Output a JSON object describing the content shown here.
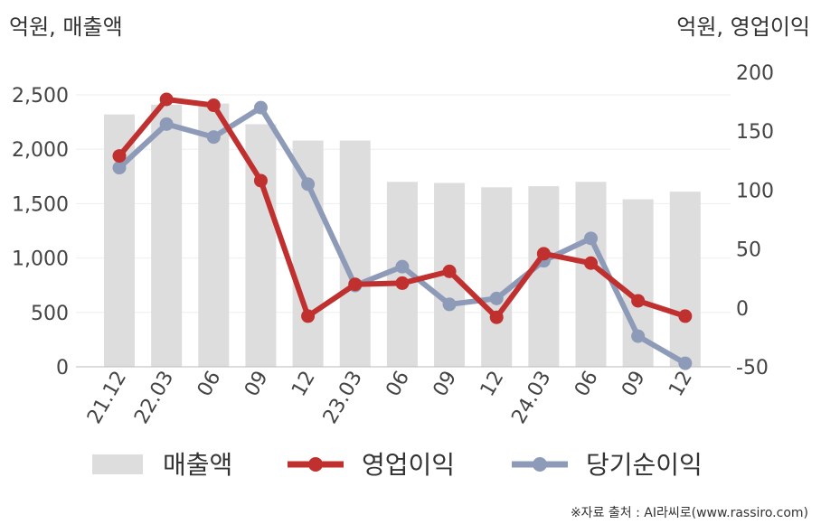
{
  "chart_data": {
    "type": "bar+line",
    "left_unit_label": "억원, 매출액",
    "right_unit_label": "억원, 영업이익",
    "categories": [
      "21.12",
      "22.03",
      "06",
      "09",
      "12",
      "23.03",
      "06",
      "09",
      "12",
      "24.03",
      "06",
      "09",
      "12"
    ],
    "left_axis": {
      "ylim": [
        0,
        2500
      ],
      "ticks": [
        "0",
        "500",
        "1,000",
        "1,500",
        "2,000",
        "2,500"
      ]
    },
    "right_axis": {
      "ylim": [
        -50,
        200
      ],
      "ticks": [
        "-50",
        "0",
        "50",
        "100",
        "150",
        "200"
      ]
    },
    "series": [
      {
        "name": "매출액",
        "kind": "bar",
        "axis": "left",
        "color": "#dddddd",
        "values": [
          2320,
          2410,
          2420,
          2230,
          2080,
          2080,
          1700,
          1690,
          1650,
          1660,
          1700,
          1540,
          1610
        ]
      },
      {
        "name": "영업이익",
        "kind": "line",
        "axis": "right",
        "color": "#c0302f",
        "values": [
          129,
          177,
          172,
          108,
          -7,
          20,
          21,
          31,
          -8,
          46,
          38,
          6,
          -7
        ]
      },
      {
        "name": "당기순이익",
        "kind": "line",
        "axis": "right",
        "color": "#8e9bb8",
        "values": [
          119,
          156,
          145,
          170,
          105,
          19,
          35,
          3,
          8,
          40,
          59,
          -24,
          -47
        ]
      }
    ],
    "legend": "bottom",
    "grid": true
  },
  "source": "※자료 출처 : AI라씨로(www.rassiro.com)"
}
